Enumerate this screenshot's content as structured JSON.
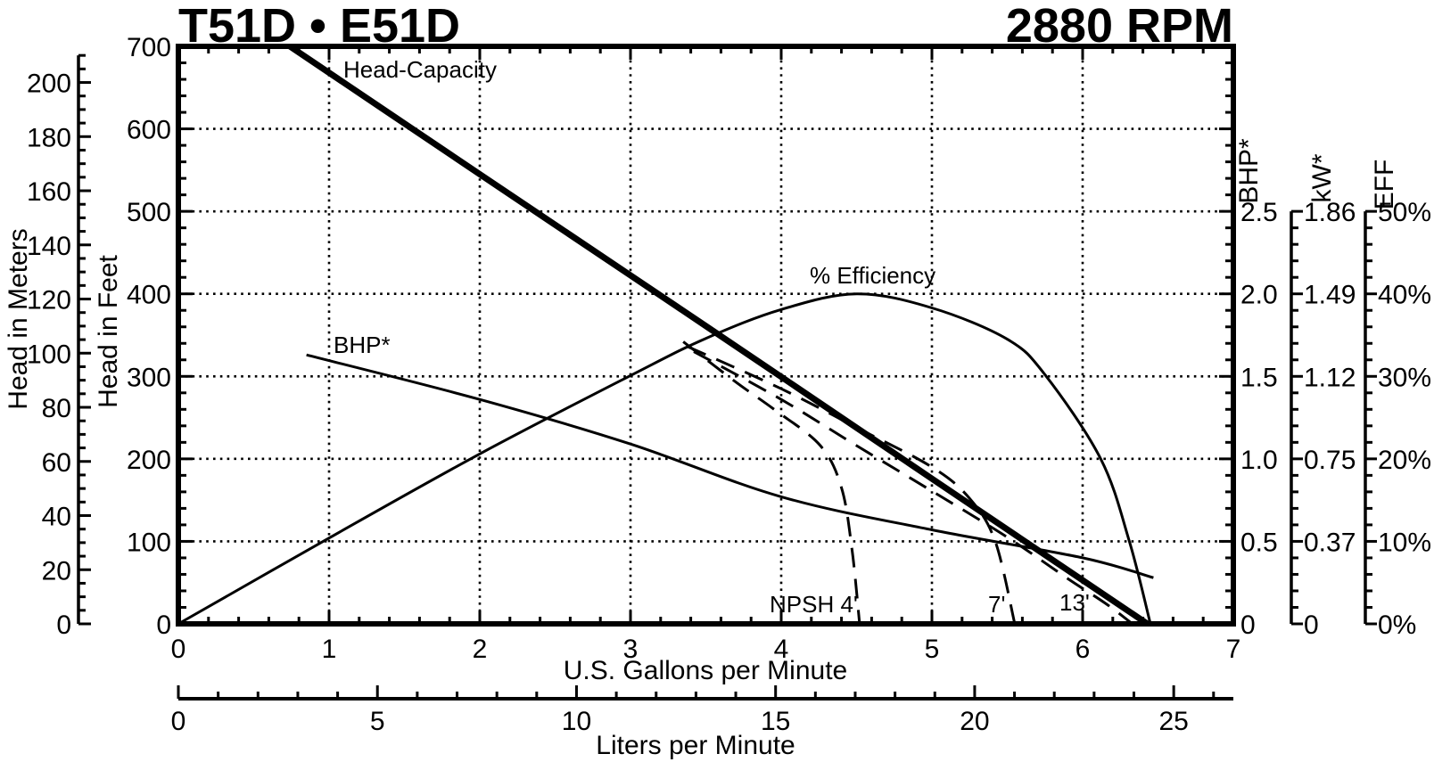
{
  "title_left": "T51D • E51D",
  "title_right": "2880 RPM",
  "colors": {
    "foreground": "#000000",
    "background": "#ffffff"
  },
  "labels": {
    "head_capacity": "Head-Capacity",
    "bhp_curve": "BHP*",
    "efficiency_curve": "% Efficiency",
    "npsh4": "NPSH 4'",
    "npsh7": "7'",
    "npsh13": "13'"
  },
  "axes": {
    "gpm": {
      "title": "U.S. Gallons per Minute",
      "tick_labels": [
        "0",
        "1",
        "2",
        "3",
        "4",
        "5",
        "6",
        "7"
      ],
      "minor_step": 0.2,
      "range": [
        0,
        7
      ]
    },
    "liters": {
      "title": "Liters per Minute",
      "tick_labels": [
        "0",
        "5",
        "10",
        "15",
        "20",
        "25"
      ],
      "minor_step": 1,
      "range": [
        0,
        26.5
      ]
    },
    "feet": {
      "title": "Head in Feet",
      "tick_labels": [
        "0",
        "100",
        "200",
        "300",
        "400",
        "500",
        "600",
        "700"
      ],
      "minor_step": 20,
      "range": [
        0,
        700
      ]
    },
    "meters": {
      "title": "Head in Meters",
      "tick_labels": [
        "0",
        "20",
        "40",
        "60",
        "80",
        "100",
        "120",
        "140",
        "160",
        "180",
        "200"
      ],
      "minor_step": 5,
      "range": [
        0,
        210
      ]
    },
    "bhp": {
      "title": "BHP*",
      "tick_labels": [
        "0",
        "0.5",
        "1.0",
        "1.5",
        "2.0",
        "2.5"
      ],
      "range": [
        0,
        2.5
      ]
    },
    "kw": {
      "title": "kW*",
      "tick_labels": [
        "0",
        "0.37",
        "0.75",
        "1.12",
        "1.49",
        "1.86"
      ],
      "range": [
        0,
        1.86
      ]
    },
    "eff": {
      "title": "EFF",
      "tick_labels": [
        "0%",
        "10%",
        "20%",
        "30%",
        "40%",
        "50%"
      ],
      "range": [
        0,
        50
      ]
    }
  },
  "chart_data": {
    "type": "line",
    "title": "T51D • E51D pump performance at 2880 RPM",
    "xlabel": "U.S. Gallons per Minute",
    "xlabel_secondary": "Liters per Minute",
    "x_range_gpm": [
      0,
      7
    ],
    "x_range_liters": [
      0,
      26.5
    ],
    "y_left_feet_range": [
      0,
      700
    ],
    "y_left_meters_range": [
      0,
      210
    ],
    "y_right_bhp_range": [
      0,
      2.5
    ],
    "y_right_kw_range": [
      0,
      1.86
    ],
    "y_right_eff_range": [
      0,
      50
    ],
    "grid": "dotted, every 1 GPM and every 100 ft",
    "legend_position": "inline curve labels",
    "series": [
      {
        "name": "Head-Capacity",
        "units": "ft",
        "style": "thick-solid",
        "points": [
          [
            0.74,
            700
          ],
          [
            2.0,
            545
          ],
          [
            3.5,
            361
          ],
          [
            5.0,
            176
          ],
          [
            6.43,
            0
          ]
        ]
      },
      {
        "name": "BHP*",
        "units": "BHP",
        "style": "thin-solid",
        "points": [
          [
            0.85,
            1.63
          ],
          [
            2.0,
            1.36
          ],
          [
            3.0,
            1.09
          ],
          [
            4.0,
            0.77
          ],
          [
            5.0,
            0.57
          ],
          [
            6.0,
            0.4
          ],
          [
            6.47,
            0.28
          ]
        ]
      },
      {
        "name": "% Efficiency",
        "units": "%",
        "style": "thin-solid",
        "points": [
          [
            0,
            0
          ],
          [
            1.0,
            10.4
          ],
          [
            2.0,
            20.6
          ],
          [
            3.0,
            30.1
          ],
          [
            3.5,
            34.6
          ],
          [
            4.0,
            38.1
          ],
          [
            4.5,
            40.0
          ],
          [
            5.0,
            38.3
          ],
          [
            5.5,
            34.5
          ],
          [
            5.75,
            30.2
          ],
          [
            6.12,
            20.0
          ],
          [
            6.31,
            10.0
          ],
          [
            6.45,
            0
          ]
        ]
      },
      {
        "name": "NPSH 4'",
        "units": "ft",
        "style": "dashed",
        "points": [
          [
            3.35,
            342
          ],
          [
            3.7,
            293
          ],
          [
            3.96,
            259
          ],
          [
            4.26,
            216
          ],
          [
            4.4,
            165
          ],
          [
            4.47,
            90
          ],
          [
            4.52,
            0
          ]
        ]
      },
      {
        "name": "NPSH 7'",
        "units": "ft",
        "style": "dashed",
        "points": [
          [
            3.38,
            336
          ],
          [
            4.0,
            285
          ],
          [
            4.5,
            238
          ],
          [
            5.0,
            190
          ],
          [
            5.25,
            152
          ],
          [
            5.42,
            100
          ],
          [
            5.55,
            0
          ]
        ]
      },
      {
        "name": "NPSH 13'",
        "units": "ft",
        "style": "dashed",
        "points": [
          [
            3.42,
            330
          ],
          [
            4.0,
            272
          ],
          [
            4.5,
            216
          ],
          [
            5.0,
            161
          ],
          [
            5.5,
            105
          ],
          [
            5.9,
            55
          ],
          [
            6.15,
            25
          ],
          [
            6.33,
            0
          ]
        ]
      }
    ]
  }
}
